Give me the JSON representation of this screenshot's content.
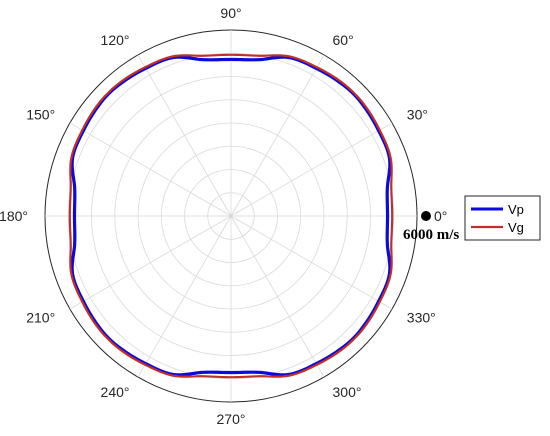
{
  "chart_data": {
    "type": "polar-line",
    "angle_unit": "deg",
    "angle_ticks": [
      0,
      30,
      60,
      90,
      120,
      150,
      180,
      210,
      240,
      270,
      300,
      330
    ],
    "angle_tick_labels": [
      "0°",
      "30°",
      "60°",
      "90°",
      "120°",
      "150°",
      "180°",
      "210°",
      "240°",
      "270°",
      "300°",
      "330°"
    ],
    "r_max": 6000,
    "r_rings": 8,
    "grid": true,
    "legend_position": "right",
    "series": [
      {
        "name": "Vp",
        "color": "#0a0adc",
        "theta": [
          0,
          10,
          20,
          30,
          40,
          45,
          50,
          60,
          70,
          80,
          90
        ],
        "r": [
          5050,
          5120,
          5440,
          5500,
          5560,
          5580,
          5560,
          5500,
          5440,
          5120,
          5050
        ]
      },
      {
        "name": "Vg",
        "color": "#c0302a",
        "theta": [
          0,
          10,
          20,
          30,
          40,
          45,
          50,
          60,
          70,
          80,
          90
        ],
        "r": [
          5200,
          5250,
          5480,
          5540,
          5600,
          5610,
          5600,
          5540,
          5480,
          5250,
          5200
        ]
      }
    ],
    "symmetry": "fourfold",
    "annotations": [
      {
        "text": "6000 m/s",
        "theta": 0,
        "r": 6000
      }
    ]
  }
}
